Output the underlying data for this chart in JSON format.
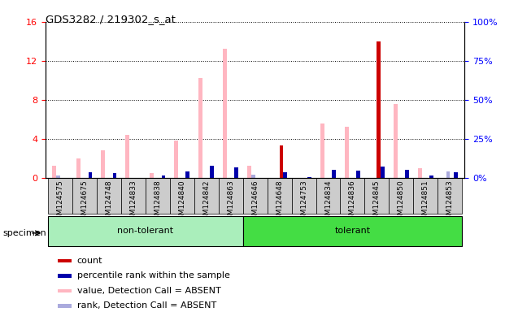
{
  "title": "GDS3282 / 219302_s_at",
  "samples": [
    "GSM124575",
    "GSM124675",
    "GSM124748",
    "GSM124833",
    "GSM124838",
    "GSM124840",
    "GSM124842",
    "GSM124863",
    "GSM124646",
    "GSM124648",
    "GSM124753",
    "GSM124834",
    "GSM124836",
    "GSM124845",
    "GSM124850",
    "GSM124851",
    "GSM124853"
  ],
  "groups": [
    {
      "label": "non-tolerant",
      "start": 0,
      "end": 7,
      "color": "#AAEEBB"
    },
    {
      "label": "tolerant",
      "start": 8,
      "end": 16,
      "color": "#44DD44"
    }
  ],
  "count": [
    0,
    0,
    0,
    0,
    0,
    0,
    0,
    0,
    0,
    3.3,
    0,
    0,
    0,
    14.0,
    0,
    0,
    0
  ],
  "percentile_rank": [
    0,
    3.5,
    3.2,
    0,
    1.5,
    4.0,
    7.8,
    6.5,
    0,
    3.6,
    0.5,
    5.0,
    4.8,
    7.2,
    5.0,
    1.5,
    3.8
  ],
  "value_absent": [
    1.2,
    2.0,
    2.8,
    4.4,
    0.5,
    3.8,
    10.2,
    13.2,
    1.2,
    0,
    0,
    5.6,
    5.2,
    0,
    7.6,
    1.0,
    0
  ],
  "rank_absent": [
    1.4,
    0,
    0,
    0,
    0,
    0,
    0,
    0,
    1.8,
    0,
    0,
    0,
    0,
    0,
    0,
    0,
    4.0
  ],
  "ylim_left": [
    0,
    16
  ],
  "ylim_right": [
    0,
    100
  ],
  "left_ticks": [
    0,
    4,
    8,
    12,
    16
  ],
  "right_ticks": [
    0,
    25,
    50,
    75,
    100
  ],
  "count_color": "#CC0000",
  "percentile_color": "#0000AA",
  "value_absent_color": "#FFB6C1",
  "rank_absent_color": "#AAAADD",
  "bg_color": "#CCCCCC",
  "legend_items": [
    [
      "#CC0000",
      "count"
    ],
    [
      "#0000AA",
      "percentile rank within the sample"
    ],
    [
      "#FFB6C1",
      "value, Detection Call = ABSENT"
    ],
    [
      "#AAAADD",
      "rank, Detection Call = ABSENT"
    ]
  ]
}
